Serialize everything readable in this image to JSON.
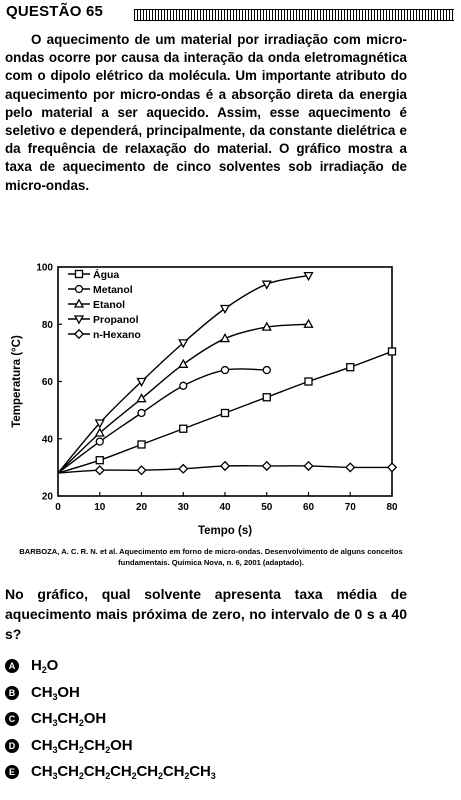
{
  "header": {
    "question_label": "QUESTÃO 65"
  },
  "passage": "O aquecimento de um material por irradiação com micro-ondas ocorre por causa da interação da onda eletromagnética com o dipolo elétrico da molécula. Um importante atributo do aquecimento por micro-ondas é a absorção direta da energia pelo material a ser aquecido. Assim, esse aquecimento é seletivo e dependerá, principalmente, da constante dielétrica e da frequência de relaxação do material. O gráfico mostra a taxa de aquecimento de cinco solventes sob irradiação de micro-ondas.",
  "chart_data": {
    "type": "line",
    "xlabel": "Tempo (s)",
    "ylabel": "Temperatura (°C)",
    "xlim": [
      0,
      80
    ],
    "ylim": [
      20,
      100
    ],
    "xticks": [
      "0",
      "10",
      "20",
      "30",
      "40",
      "50",
      "60",
      "70",
      "80"
    ],
    "yticks": [
      "20",
      "40",
      "60",
      "80",
      "100"
    ],
    "grid": false,
    "legend_position": "top-left",
    "series": [
      {
        "name": "Água",
        "marker": "square",
        "x": [
          0,
          10,
          20,
          30,
          40,
          50,
          60,
          70,
          80
        ],
        "y": [
          28,
          32.5,
          38,
          43.5,
          49,
          54.5,
          60,
          65,
          70.5
        ]
      },
      {
        "name": "Metanol",
        "marker": "circle",
        "x": [
          0,
          10,
          20,
          30,
          40,
          50
        ],
        "y": [
          28,
          39,
          49,
          58.5,
          64,
          64
        ]
      },
      {
        "name": "Etanol",
        "marker": "triangle-up",
        "x": [
          0,
          10,
          20,
          30,
          40,
          50,
          60
        ],
        "y": [
          28,
          42,
          54,
          66,
          75,
          79,
          80
        ]
      },
      {
        "name": "Propanol",
        "marker": "triangle-down",
        "x": [
          0,
          10,
          20,
          30,
          40,
          50,
          60
        ],
        "y": [
          28,
          45.5,
          60,
          73.5,
          85.5,
          94,
          97
        ]
      },
      {
        "name": "n-Hexano",
        "marker": "diamond",
        "x": [
          0,
          10,
          20,
          30,
          40,
          50,
          60,
          70,
          80
        ],
        "y": [
          28,
          29,
          29,
          29.5,
          30.5,
          30.5,
          30.5,
          30,
          30
        ]
      }
    ]
  },
  "source_citation": "BARBOZA, A. C. R. N. et al. Aquecimento em forno de micro-ondas. Desenvolvimento de alguns conceitos fundamentais. Química Nova, n. 6, 2001 (adaptado).",
  "question": "No gráfico, qual solvente apresenta taxa média de aquecimento mais próxima de zero, no intervalo de 0 s a 40 s?",
  "options": [
    {
      "letter": "A",
      "formula": [
        [
          "H",
          "2"
        ],
        [
          "O",
          ""
        ]
      ]
    },
    {
      "letter": "B",
      "formula": [
        [
          "CH",
          "3"
        ],
        [
          "OH",
          ""
        ]
      ]
    },
    {
      "letter": "C",
      "formula": [
        [
          "CH",
          "3"
        ],
        [
          "CH",
          "2"
        ],
        [
          "OH",
          ""
        ]
      ]
    },
    {
      "letter": "D",
      "formula": [
        [
          "CH",
          "3"
        ],
        [
          "CH",
          "2"
        ],
        [
          "CH",
          "2"
        ],
        [
          "OH",
          ""
        ]
      ]
    },
    {
      "letter": "E",
      "formula": [
        [
          "CH",
          "3"
        ],
        [
          "CH",
          "2"
        ],
        [
          "CH",
          "2"
        ],
        [
          "CH",
          "2"
        ],
        [
          "CH",
          "2"
        ],
        [
          "CH",
          "2"
        ],
        [
          "CH",
          "3"
        ]
      ]
    }
  ]
}
